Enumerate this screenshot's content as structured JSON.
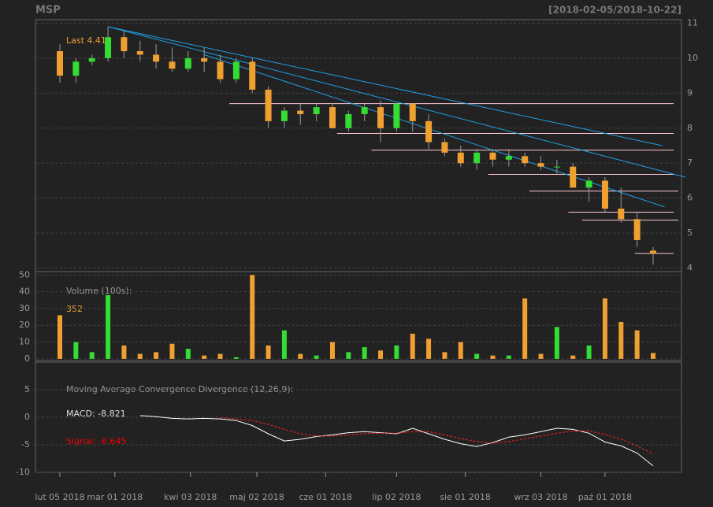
{
  "chart_data": [
    {
      "type": "candlestick",
      "title": "MSP",
      "subtitle": "[2018-02-05/2018-10-22]",
      "annotation": "Last 4.41",
      "x": [
        "2018-02-05",
        "2018-02-12",
        "2018-02-19",
        "2018-02-26",
        "2018-03-05",
        "2018-03-12",
        "2018-03-19",
        "2018-03-26",
        "2018-04-02",
        "2018-04-09",
        "2018-04-16",
        "2018-04-23",
        "2018-04-30",
        "2018-05-07",
        "2018-05-14",
        "2018-05-21",
        "2018-05-28",
        "2018-06-04",
        "2018-06-11",
        "2018-06-18",
        "2018-06-25",
        "2018-07-02",
        "2018-07-09",
        "2018-07-16",
        "2018-07-23",
        "2018-07-30",
        "2018-08-06",
        "2018-08-13",
        "2018-08-20",
        "2018-08-27",
        "2018-09-03",
        "2018-09-10",
        "2018-09-17",
        "2018-09-24",
        "2018-10-01",
        "2018-10-08",
        "2018-10-15",
        "2018-10-22"
      ],
      "open": [
        10.2,
        9.5,
        9.9,
        10.0,
        10.6,
        10.2,
        10.1,
        9.9,
        9.7,
        10.0,
        9.9,
        9.4,
        9.9,
        9.1,
        8.2,
        8.5,
        8.4,
        8.6,
        8.0,
        8.4,
        8.6,
        8.0,
        8.7,
        8.2,
        7.6,
        7.3,
        7.0,
        7.3,
        7.1,
        7.2,
        7.0,
        6.9,
        6.9,
        6.3,
        6.5,
        5.7,
        5.4,
        4.5
      ],
      "high": [
        10.4,
        10.0,
        10.1,
        10.9,
        10.8,
        10.5,
        10.4,
        10.3,
        10.2,
        10.3,
        10.1,
        10.0,
        10.0,
        9.2,
        8.6,
        8.7,
        8.7,
        8.7,
        8.5,
        8.7,
        8.8,
        8.7,
        8.7,
        8.4,
        7.7,
        7.5,
        7.4,
        7.4,
        7.4,
        7.3,
        7.2,
        7.1,
        7.0,
        6.6,
        6.6,
        6.3,
        5.6,
        4.6
      ],
      "low": [
        9.3,
        9.3,
        9.8,
        9.9,
        10.0,
        9.9,
        9.7,
        9.6,
        9.6,
        9.6,
        9.3,
        9.3,
        9.0,
        8.0,
        8.0,
        8.1,
        8.2,
        8.0,
        7.9,
        8.2,
        7.6,
        7.9,
        7.9,
        7.4,
        7.2,
        6.9,
        6.8,
        6.9,
        6.9,
        6.9,
        6.8,
        6.7,
        6.3,
        5.9,
        5.6,
        5.3,
        4.6,
        4.1
      ],
      "close": [
        9.5,
        9.9,
        10.0,
        10.6,
        10.2,
        10.1,
        9.9,
        9.7,
        10.0,
        9.9,
        9.4,
        9.9,
        9.1,
        8.2,
        8.5,
        8.4,
        8.6,
        8.0,
        8.4,
        8.6,
        8.0,
        8.7,
        8.2,
        7.6,
        7.3,
        7.0,
        7.3,
        7.1,
        7.2,
        7.0,
        6.9,
        6.9,
        6.3,
        6.5,
        5.7,
        5.4,
        4.8,
        4.41
      ],
      "up_color": "#33dd33",
      "down_color": "#f0a030",
      "trendlines": [
        {
          "x": [
            "2018-02-26",
            "2018-10-26"
          ],
          "y": [
            10.9,
            7.5
          ]
        },
        {
          "x": [
            "2018-02-26",
            "2018-11-05"
          ],
          "y": [
            10.9,
            6.6
          ]
        },
        {
          "x": [
            "2018-04-09",
            "2018-10-27"
          ],
          "y": [
            10.1,
            5.75
          ]
        }
      ],
      "trend_color": "#1ea0e6",
      "levels": [
        {
          "x": [
            "2018-04-20",
            "2018-10-31"
          ],
          "y": 8.7
        },
        {
          "x": [
            "2018-06-06",
            "2018-10-31"
          ],
          "y": 7.85
        },
        {
          "x": [
            "2018-06-21",
            "2018-10-31"
          ],
          "y": 7.37
        },
        {
          "x": [
            "2018-08-11",
            "2018-10-31"
          ],
          "y": 6.68
        },
        {
          "x": [
            "2018-08-29",
            "2018-11-02"
          ],
          "y": 6.2
        },
        {
          "x": [
            "2018-09-15",
            "2018-10-31"
          ],
          "y": 5.6
        },
        {
          "x": [
            "2018-09-21",
            "2018-11-02"
          ],
          "y": 5.37
        },
        {
          "x": [
            "2018-10-14",
            "2018-10-31"
          ],
          "y": 4.42
        }
      ],
      "level_color": "#ffc8d2",
      "xlim": [
        "2018-02-05",
        "2018-10-22"
      ],
      "ylim": [
        3.9,
        11.1
      ],
      "yticks": [
        4,
        5,
        6,
        7,
        8,
        9,
        10,
        11
      ]
    },
    {
      "type": "bar",
      "label": "Volume (100s):",
      "value_label": "352",
      "x": [
        "2018-02-05",
        "2018-02-12",
        "2018-02-19",
        "2018-02-26",
        "2018-03-05",
        "2018-03-12",
        "2018-03-19",
        "2018-03-26",
        "2018-04-02",
        "2018-04-09",
        "2018-04-16",
        "2018-04-23",
        "2018-04-30",
        "2018-05-07",
        "2018-05-14",
        "2018-05-21",
        "2018-05-28",
        "2018-06-04",
        "2018-06-11",
        "2018-06-18",
        "2018-06-25",
        "2018-07-02",
        "2018-07-09",
        "2018-07-16",
        "2018-07-23",
        "2018-07-30",
        "2018-08-06",
        "2018-08-13",
        "2018-08-20",
        "2018-08-27",
        "2018-09-03",
        "2018-09-10",
        "2018-09-17",
        "2018-09-24",
        "2018-10-01",
        "2018-10-08",
        "2018-10-15",
        "2018-10-22"
      ],
      "values": [
        26,
        10,
        4,
        38,
        8,
        3,
        4,
        9,
        6,
        2,
        3,
        1,
        50,
        8,
        17,
        3,
        2,
        10,
        4,
        7,
        5,
        8,
        15,
        12,
        4,
        10,
        3,
        2,
        2,
        36,
        3,
        19,
        2,
        8,
        36,
        22,
        17,
        3.52
      ],
      "xlim": [
        "2018-02-05",
        "2018-10-22"
      ],
      "ylim": [
        -1,
        52
      ],
      "yticks": [
        0,
        10,
        20,
        30,
        40,
        50
      ]
    },
    {
      "type": "line",
      "title": "Moving Average Convergence Divergence (12,26,9):",
      "x": [
        "2018-02-05",
        "2018-02-12",
        "2018-02-19",
        "2018-02-26",
        "2018-03-05",
        "2018-03-12",
        "2018-03-19",
        "2018-03-26",
        "2018-04-02",
        "2018-04-09",
        "2018-04-16",
        "2018-04-23",
        "2018-04-30",
        "2018-05-07",
        "2018-05-14",
        "2018-05-21",
        "2018-05-28",
        "2018-06-04",
        "2018-06-11",
        "2018-06-18",
        "2018-06-25",
        "2018-07-02",
        "2018-07-09",
        "2018-07-16",
        "2018-07-23",
        "2018-07-30",
        "2018-08-06",
        "2018-08-13",
        "2018-08-20",
        "2018-08-27",
        "2018-09-03",
        "2018-09-10",
        "2018-09-17",
        "2018-09-24",
        "2018-10-01",
        "2018-10-08",
        "2018-10-15",
        "2018-10-22"
      ],
      "series": [
        {
          "name": "MACD: -8.821",
          "color": "#ffffff",
          "values": [
            null,
            null,
            null,
            null,
            null,
            0.3,
            0.1,
            -0.2,
            -0.3,
            -0.2,
            -0.3,
            -0.6,
            -1.5,
            -3.0,
            -4.3,
            -4.0,
            -3.5,
            -3.2,
            -2.8,
            -2.6,
            -2.8,
            -3.0,
            -2.0,
            -3.0,
            -4.0,
            -4.8,
            -5.3,
            -4.6,
            -3.6,
            -3.2,
            -2.6,
            -2.0,
            -2.2,
            -2.9,
            -4.5,
            -5.2,
            -6.5,
            -8.821
          ]
        },
        {
          "name": "Signal: -6.645",
          "color": "#ff2020",
          "values": [
            null,
            null,
            null,
            null,
            null,
            null,
            null,
            null,
            null,
            null,
            -0.1,
            -0.3,
            -0.6,
            -1.3,
            -2.2,
            -3.0,
            -3.4,
            -3.4,
            -3.2,
            -3.0,
            -2.9,
            -2.9,
            -2.6,
            -2.6,
            -3.2,
            -3.9,
            -4.4,
            -4.7,
            -4.4,
            -3.9,
            -3.4,
            -2.9,
            -2.5,
            -2.5,
            -3.1,
            -4.0,
            -5.2,
            -6.645
          ]
        }
      ],
      "xlim": [
        "2018-02-05",
        "2018-10-22"
      ],
      "ylim": [
        -10,
        10
      ],
      "yticks": [
        -10,
        -5,
        0,
        5
      ],
      "xticks": [
        {
          "value": "2018-02-05",
          "label": "lut 05 2018"
        },
        {
          "value": "2018-03-01",
          "label": "mar 01 2018"
        },
        {
          "value": "2018-04-03",
          "label": "kwi 03 2018"
        },
        {
          "value": "2018-05-02",
          "label": "maj 02 2018"
        },
        {
          "value": "2018-06-01",
          "label": "cze 01 2018"
        },
        {
          "value": "2018-07-02",
          "label": "lip 02 2018"
        },
        {
          "value": "2018-08-01",
          "label": "sie 01 2018"
        },
        {
          "value": "2018-09-03",
          "label": "wrz 03 2018"
        },
        {
          "value": "2018-10-01",
          "label": "paź 01 2018"
        }
      ]
    }
  ]
}
